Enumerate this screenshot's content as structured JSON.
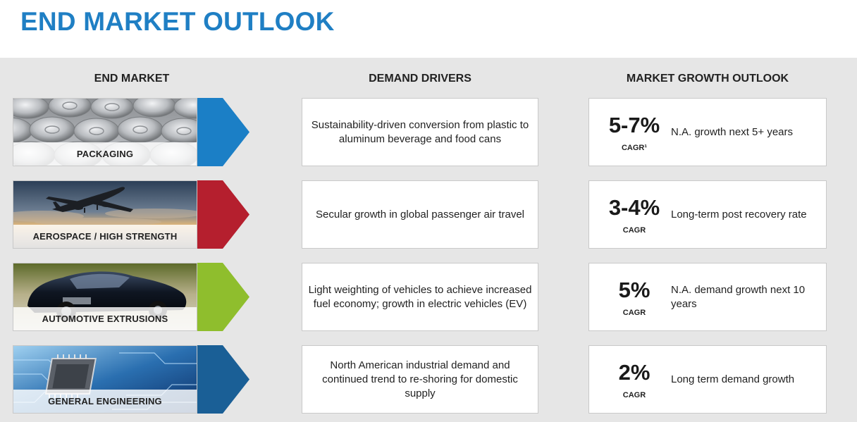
{
  "title": "END MARKET OUTLOOK",
  "columns": {
    "end_market": "END MARKET",
    "demand_drivers": "DEMAND DRIVERS",
    "growth_outlook": "MARKET GROWTH OUTLOOK"
  },
  "colors": {
    "title": "#1f7fc4",
    "packaging": "#1b7fc6",
    "aerospace": "#b51f2e",
    "automotive": "#8fbe2d",
    "general_engineering": "#1a5f96"
  },
  "rows": [
    {
      "market": "PACKAGING",
      "image": "beverage-cans-image",
      "driver": "Sustainability-driven conversion from plastic to aluminum beverage and food cans",
      "pct": "5-7%",
      "cagr": "CAGR¹",
      "growth": "N.A. growth next 5+ years"
    },
    {
      "market": "AEROSPACE / HIGH STRENGTH",
      "image": "airplane-image",
      "driver": "Secular growth in global passenger air travel",
      "pct": "3-4%",
      "cagr": "CAGR",
      "growth": "Long-term post recovery rate"
    },
    {
      "market": "AUTOMOTIVE EXTRUSIONS",
      "image": "car-image",
      "driver": "Light weighting of vehicles to achieve increased fuel economy; growth in electric vehicles (EV)",
      "pct": "5%",
      "cagr": "CAGR",
      "growth": "N.A. demand growth next 10 years"
    },
    {
      "market": "GENERAL ENGINEERING",
      "image": "circuit-chip-image",
      "driver": "North American industrial demand and continued trend to re-shoring for domestic supply",
      "pct": "2%",
      "cagr": "CAGR",
      "growth": "Long term demand growth"
    }
  ]
}
